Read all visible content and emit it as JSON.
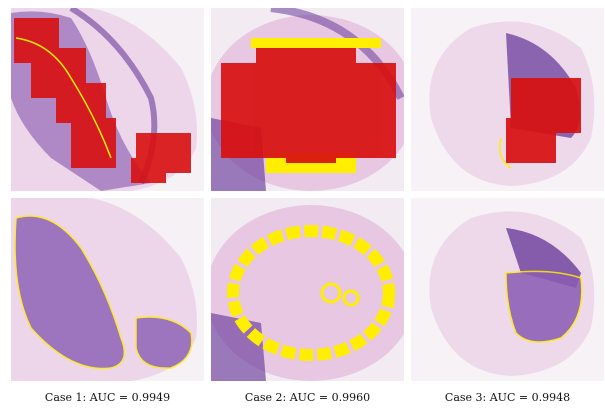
{
  "captions": [
    "Case 1:  AUC = 0.9949",
    "Case 2:  AUC = 0.9960",
    "Case 3:  AUC = 0.9948"
  ],
  "colors": {
    "tissue_pink": "#e9c9e3",
    "tissue_purple": "#6a3c9c",
    "heatmap_red": "#d81010",
    "annotation_yellow": "#ffee00",
    "background": "#f3eef4"
  }
}
